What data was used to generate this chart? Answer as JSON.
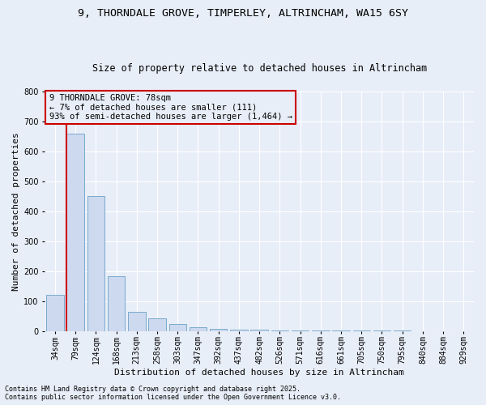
{
  "title1": "9, THORNDALE GROVE, TIMPERLEY, ALTRINCHAM, WA15 6SY",
  "title2": "Size of property relative to detached houses in Altrincham",
  "xlabel": "Distribution of detached houses by size in Altrincham",
  "ylabel": "Number of detached properties",
  "categories": [
    "34sqm",
    "79sqm",
    "124sqm",
    "168sqm",
    "213sqm",
    "258sqm",
    "303sqm",
    "347sqm",
    "392sqm",
    "437sqm",
    "482sqm",
    "526sqm",
    "571sqm",
    "616sqm",
    "661sqm",
    "705sqm",
    "750sqm",
    "795sqm",
    "840sqm",
    "884sqm",
    "929sqm"
  ],
  "values": [
    120,
    660,
    450,
    183,
    65,
    42,
    23,
    13,
    8,
    5,
    4,
    3,
    2,
    2,
    1,
    1,
    1,
    1,
    0,
    0,
    0
  ],
  "bar_color": "#ccd9ef",
  "bar_edge_color": "#7aaacc",
  "highlight_index": 1,
  "highlight_edge_color": "#cc0000",
  "highlight_linewidth": 1.5,
  "annotation_text": "9 THORNDALE GROVE: 78sqm\n← 7% of detached houses are smaller (111)\n93% of semi-detached houses are larger (1,464) →",
  "annotation_box_edge": "#cc0000",
  "ylim": [
    0,
    800
  ],
  "yticks": [
    0,
    100,
    200,
    300,
    400,
    500,
    600,
    700,
    800
  ],
  "footer1": "Contains HM Land Registry data © Crown copyright and database right 2025.",
  "footer2": "Contains public sector information licensed under the Open Government Licence v3.0.",
  "bg_color": "#e8eef8",
  "grid_color": "#ffffff",
  "title_fontsize": 9.5,
  "subtitle_fontsize": 8.5,
  "axis_label_fontsize": 8,
  "tick_fontsize": 7,
  "annotation_fontsize": 7.5,
  "footer_fontsize": 6,
  "red_vline_x": 0.6
}
